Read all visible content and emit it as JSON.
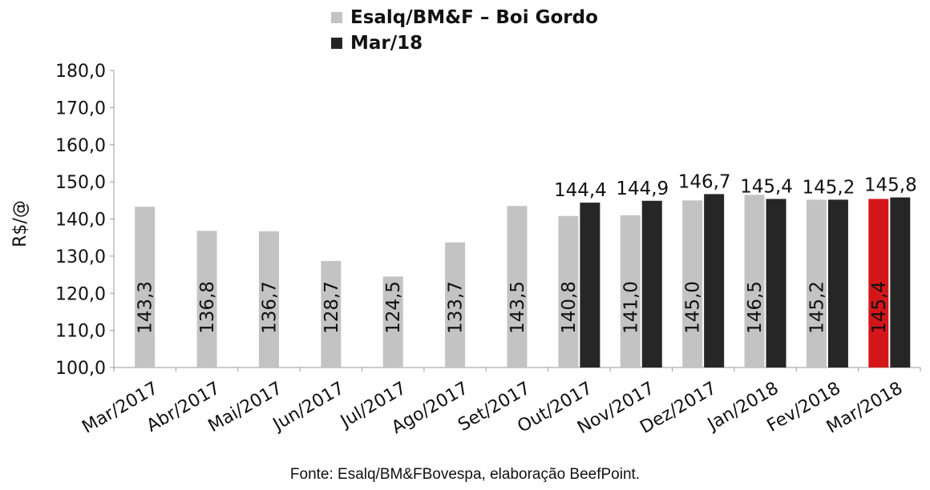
{
  "chart_data": {
    "type": "bar",
    "categories": [
      "Mar/2017",
      "Abr/2017",
      "Mai/2017",
      "Jun/2017",
      "Jul/2017",
      "Ago/2017",
      "Set/2017",
      "Out/2017",
      "Nov/2017",
      "Dez/2017",
      "Jan/2018",
      "Fev/2018",
      "Mar/2018"
    ],
    "series": [
      {
        "name": "Esalq/BM&F – Boi Gordo",
        "color": "#c3c3c3",
        "values": [
          143.3,
          136.8,
          136.7,
          128.7,
          124.5,
          133.7,
          143.5,
          140.8,
          141.0,
          145.0,
          146.5,
          145.2,
          145.4
        ],
        "labels": [
          "143,3",
          "136,8",
          "136,7",
          "128,7",
          "124,5",
          "133,7",
          "143,5",
          "140,8",
          "141,0",
          "145,0",
          "146,5",
          "145,2",
          "145,4"
        ],
        "highlight": {
          "category": "Mar/2018",
          "color": "#d4161b"
        }
      },
      {
        "name": "Mar/18",
        "color": "#262626",
        "values": [
          null,
          null,
          null,
          null,
          null,
          null,
          null,
          144.4,
          144.9,
          146.7,
          145.4,
          145.2,
          145.8
        ],
        "labels": [
          null,
          null,
          null,
          null,
          null,
          null,
          null,
          "144,4",
          "144,9",
          "146,7",
          "145,4",
          "145,2",
          "145,8"
        ]
      }
    ],
    "ylabel": "R$/@",
    "xlabel": "",
    "ylim": [
      100,
      180
    ],
    "yticks": [
      "100,0",
      "110,0",
      "120,0",
      "130,0",
      "140,0",
      "150,0",
      "160,0",
      "170,0",
      "180,0"
    ],
    "legend_position": "top-center",
    "grid": false,
    "source": "Fonte: Esalq/BM&FBovespa, elaboração BeefPoint."
  }
}
